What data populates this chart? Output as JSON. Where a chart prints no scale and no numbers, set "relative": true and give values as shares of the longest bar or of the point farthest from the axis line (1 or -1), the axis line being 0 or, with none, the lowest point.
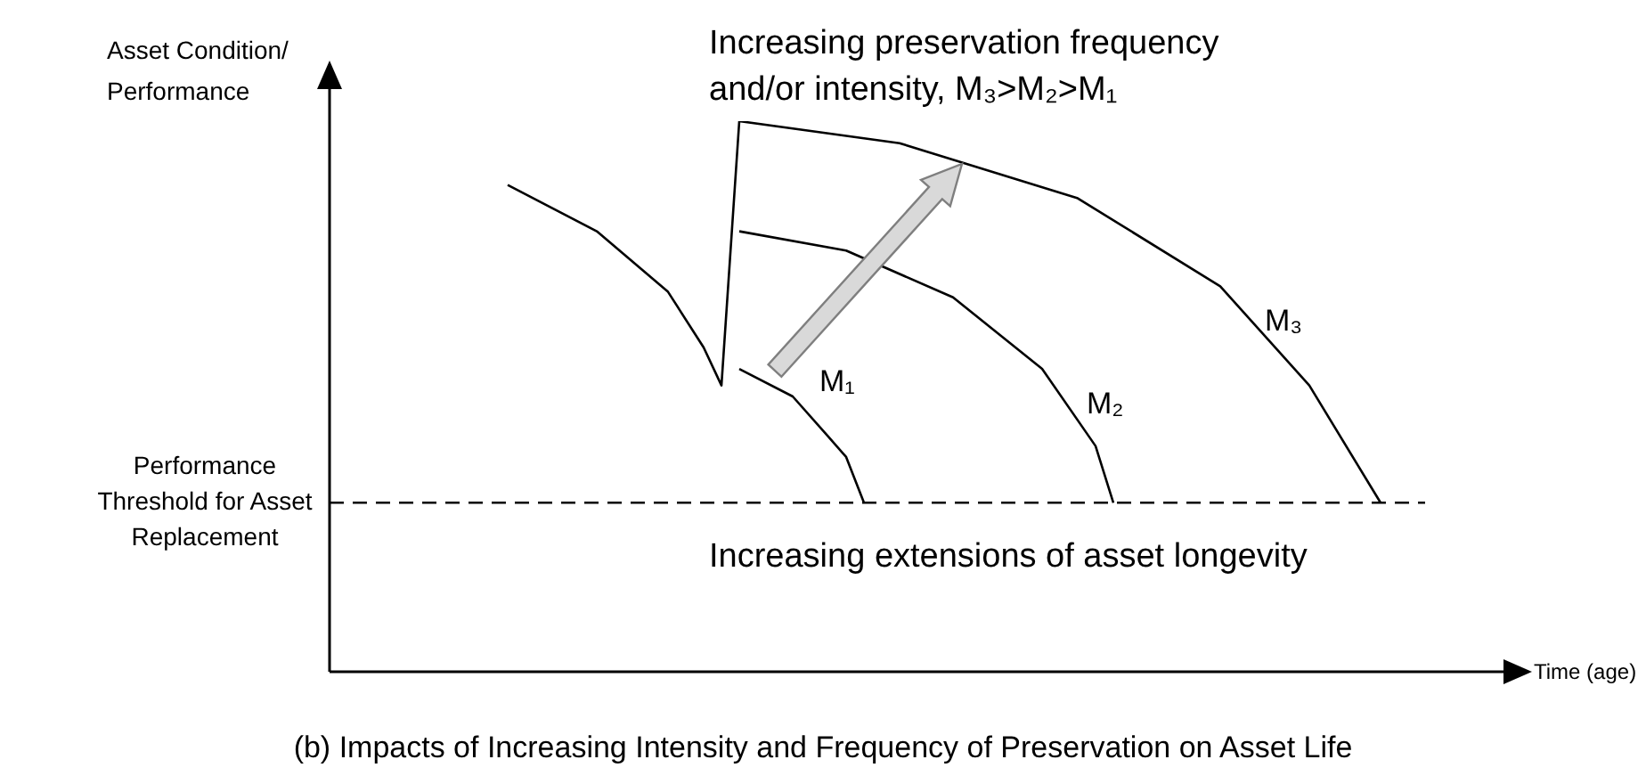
{
  "chart_data": {
    "type": "line",
    "relative": true,
    "title": "(b) Impacts of Increasing Intensity and Frequency of Preservation on Asset Life",
    "xlabel": "Time (age)",
    "ylabel": "Asset Condition/ Performance",
    "line_style": "solid",
    "annotations": [
      "Increasing preservation frequency and/or intensity, M₃>M₂>M₁",
      "Increasing extensions of asset longevity"
    ],
    "ref_lines": [
      {
        "axis": "y",
        "value": 0.307,
        "label": "Performance Threshold for Asset Replacement",
        "color": "#000000",
        "line_style": "dashed"
      }
    ],
    "categories": [
      null,
      null,
      null,
      null,
      null,
      null,
      null,
      null,
      null,
      null,
      null,
      null,
      null,
      null,
      null,
      null,
      null,
      null,
      null,
      null,
      null,
      null,
      null,
      null,
      null,
      null,
      null,
      null,
      null,
      null,
      null,
      null,
      null,
      null,
      null,
      null,
      null,
      null,
      null,
      null,
      null,
      null,
      null,
      null,
      null,
      null,
      null,
      null,
      null,
      null,
      null,
      null,
      null,
      null,
      null,
      null,
      null,
      null,
      null,
      null,
      null,
      null,
      null,
      null,
      null,
      null,
      null,
      null
    ],
    "series": [
      {
        "color": "#000000",
        "values": [
          null,
          null,
          null,
          null,
          null,
          null,
          null,
          null,
          null,
          null,
          0.884,
          null,
          null,
          null,
          null,
          0.8,
          null,
          null,
          null,
          0.69,
          null,
          0.589,
          0.52,
          1,
          null,
          null,
          null,
          null,
          null,
          null,
          null,
          null,
          null,
          null,
          null,
          null,
          null,
          null,
          null,
          null,
          null,
          null,
          null,
          null,
          null,
          null,
          null,
          null,
          null,
          null,
          null,
          null,
          null,
          null,
          null,
          null,
          null,
          null,
          null,
          null,
          null,
          null,
          null,
          null,
          null,
          null,
          null,
          null
        ]
      },
      {
        "name": "M₁",
        "color": "#000000",
        "values": [
          null,
          null,
          null,
          null,
          null,
          null,
          null,
          null,
          null,
          null,
          null,
          null,
          null,
          null,
          null,
          null,
          null,
          null,
          null,
          null,
          null,
          null,
          null,
          0.55,
          null,
          null,
          0.5,
          null,
          0.427,
          0.39,
          0.307,
          null,
          null,
          null,
          null,
          null,
          null,
          null,
          null,
          null,
          null,
          null,
          null,
          null,
          null,
          null,
          null,
          null,
          null,
          null,
          null,
          null,
          null,
          null,
          null,
          null,
          null,
          null,
          null,
          null,
          null,
          null,
          null,
          null,
          null,
          null,
          null,
          null
        ]
      },
      {
        "name": "M₂",
        "color": "#000000",
        "values": [
          null,
          null,
          null,
          null,
          null,
          null,
          null,
          null,
          null,
          null,
          null,
          null,
          null,
          null,
          null,
          null,
          null,
          null,
          null,
          null,
          null,
          null,
          null,
          0.8,
          null,
          null,
          null,
          null,
          null,
          0.765,
          null,
          null,
          null,
          null,
          null,
          0.68,
          null,
          null,
          null,
          null,
          0.55,
          null,
          null,
          0.41,
          0.307,
          null,
          null,
          null,
          null,
          null,
          null,
          null,
          null,
          null,
          null,
          null,
          null,
          null,
          null,
          null,
          null,
          null,
          null,
          null,
          null,
          null,
          null,
          null
        ]
      },
      {
        "name": "M₃",
        "color": "#000000",
        "values": [
          null,
          null,
          null,
          null,
          null,
          null,
          null,
          null,
          null,
          null,
          null,
          null,
          null,
          null,
          null,
          null,
          null,
          null,
          null,
          null,
          null,
          null,
          null,
          1,
          null,
          null,
          null,
          null,
          null,
          null,
          null,
          null,
          0.96,
          null,
          null,
          null,
          null,
          null,
          null,
          null,
          null,
          null,
          0.86,
          null,
          null,
          null,
          null,
          null,
          null,
          null,
          0.7,
          null,
          null,
          null,
          null,
          0.52,
          null,
          null,
          null,
          0.307,
          null,
          null,
          null,
          null,
          null,
          null,
          null,
          null
        ]
      }
    ]
  }
}
